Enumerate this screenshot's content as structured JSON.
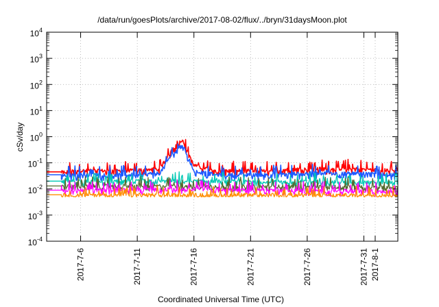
{
  "chart_data": {
    "type": "line",
    "title": "/data/run/goesPlots/archive/2017-08-02/flux/../bryn/31daysMoon.plot",
    "xlabel": "Coordinated Universal Time (UTC)",
    "ylabel": "cSv/day",
    "y_scale": "log",
    "ylim": [
      0.0001,
      10000
    ],
    "y_ticks": [
      {
        "base": "10",
        "exp": "-4"
      },
      {
        "base": "10",
        "exp": "-3"
      },
      {
        "base": "10",
        "exp": "-2"
      },
      {
        "base": "10",
        "exp": "-1"
      },
      {
        "base": "10",
        "exp": "0"
      },
      {
        "base": "10",
        "exp": "1"
      },
      {
        "base": "10",
        "exp": "2"
      },
      {
        "base": "10",
        "exp": "3"
      },
      {
        "base": "10",
        "exp": "4"
      }
    ],
    "xlim": [
      "2017-07-03",
      "2017-08-03"
    ],
    "x_ticks": [
      "2017-7-6",
      "2017-7-11",
      "2017-7-16",
      "2017-7-21",
      "2017-7-26",
      "2017-7-31",
      "2017-8-1"
    ],
    "grid": true,
    "legend": "none",
    "series": [
      {
        "color": "#ff0000",
        "typical": 0.045,
        "low": 0.025,
        "high": 0.09,
        "x": [
          "2017-07-03",
          "2017-07-06",
          "2017-07-10",
          "2017-07-13",
          "2017-07-14",
          "2017-07-15",
          "2017-07-16",
          "2017-07-18",
          "2017-07-22",
          "2017-07-26",
          "2017-07-30",
          "2017-08-03"
        ],
        "values": [
          0.04,
          0.05,
          0.05,
          0.06,
          0.3,
          0.8,
          0.08,
          0.05,
          0.05,
          0.06,
          0.06,
          0.05
        ]
      },
      {
        "color": "#1e5aff",
        "typical": 0.035,
        "low": 0.02,
        "high": 0.07,
        "x": [
          "2017-07-03",
          "2017-07-06",
          "2017-07-10",
          "2017-07-13",
          "2017-07-14",
          "2017-07-15",
          "2017-07-16",
          "2017-07-18",
          "2017-07-22",
          "2017-07-26",
          "2017-07-30",
          "2017-08-03"
        ],
        "values": [
          0.03,
          0.035,
          0.035,
          0.04,
          0.2,
          0.5,
          0.05,
          0.035,
          0.035,
          0.04,
          0.04,
          0.035
        ]
      },
      {
        "color": "#00c8b4",
        "typical": 0.02,
        "low": 0.013,
        "high": 0.03,
        "x": [
          "2017-07-03",
          "2017-07-16",
          "2017-08-03"
        ],
        "values": [
          0.02,
          0.02,
          0.018
        ]
      },
      {
        "color": "#556b2f",
        "typical": 0.013,
        "low": 0.008,
        "high": 0.022,
        "x": [
          "2017-07-03",
          "2017-07-16",
          "2017-08-03"
        ],
        "values": [
          0.013,
          0.013,
          0.012
        ]
      },
      {
        "color": "#ff00ff",
        "typical": 0.009,
        "low": 0.005,
        "high": 0.02,
        "x": [
          "2017-07-03",
          "2017-07-16",
          "2017-08-03"
        ],
        "values": [
          0.009,
          0.01,
          0.008
        ]
      },
      {
        "color": "#ff8c00",
        "typical": 0.006,
        "low": 0.005,
        "high": 0.008,
        "x": [
          "2017-07-03",
          "2017-07-16",
          "2017-08-03"
        ],
        "values": [
          0.006,
          0.006,
          0.006
        ]
      }
    ]
  }
}
